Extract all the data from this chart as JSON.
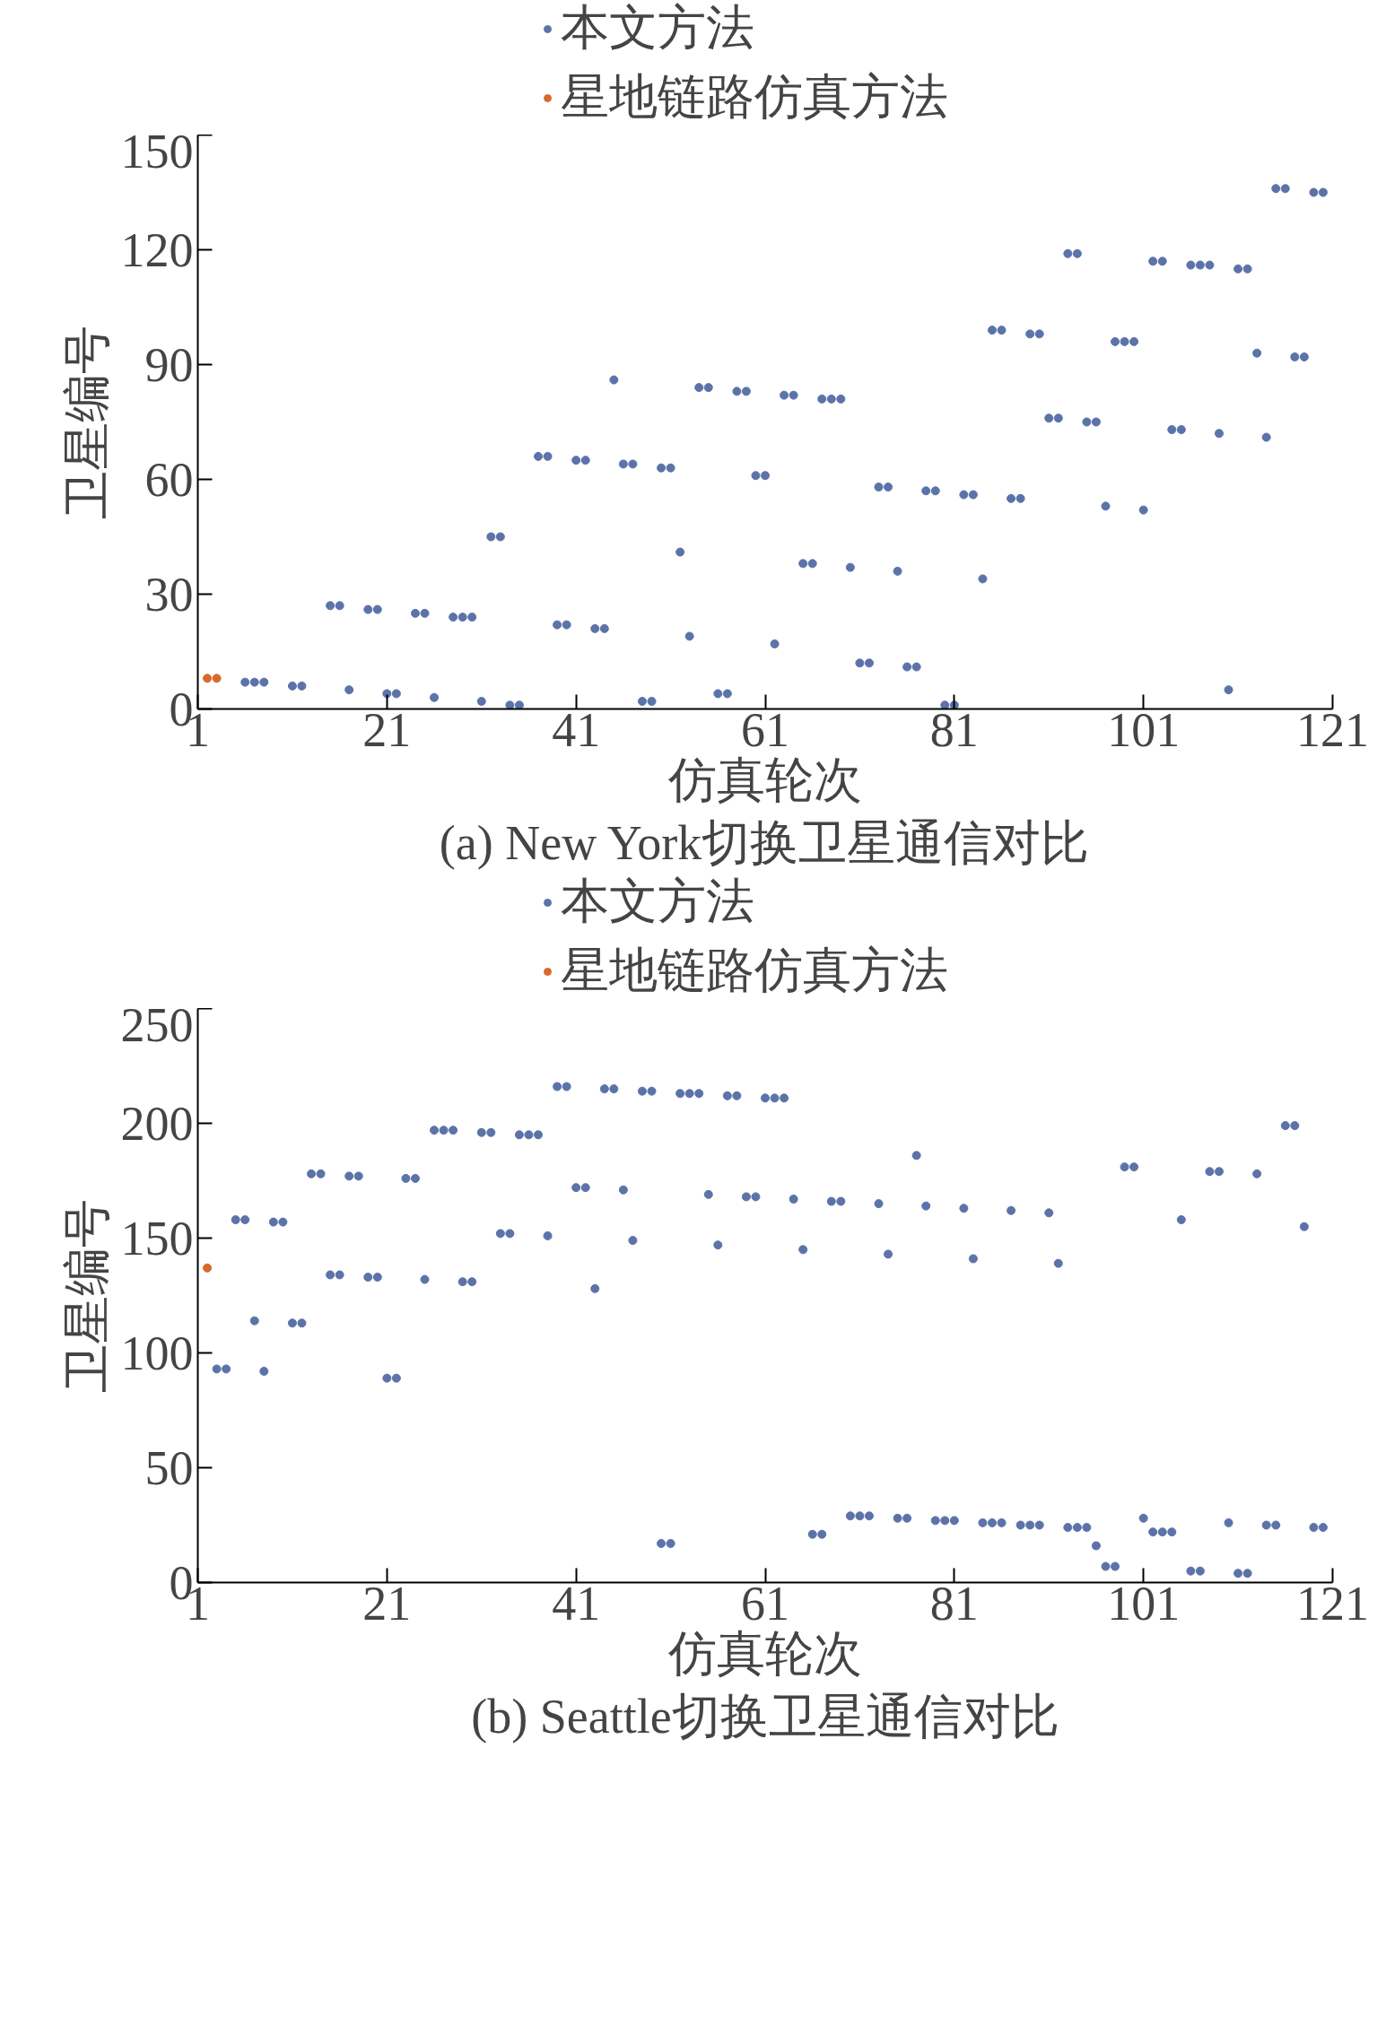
{
  "chart_data": [
    {
      "type": "scatter",
      "title": "(a) New York切换卫星通信对比",
      "xlabel": "仿真轮次",
      "ylabel": "卫星编号",
      "xlim": [
        1,
        121
      ],
      "xticks": [
        1,
        21,
        41,
        61,
        81,
        101,
        121
      ],
      "ylim": [
        0,
        150
      ],
      "yticks": [
        0,
        30,
        60,
        90,
        120,
        150
      ],
      "grid": false,
      "legend": "top",
      "marker": "circle",
      "series": [
        {
          "name": "本文方法",
          "color": "#5b73a8",
          "x": [
            6,
            7,
            8,
            11,
            12,
            15,
            16,
            17,
            19,
            20,
            21,
            22,
            24,
            25,
            26,
            28,
            29,
            30,
            31,
            32,
            33,
            34,
            35,
            37,
            38,
            39,
            40,
            41,
            42,
            43,
            44,
            45,
            46,
            47,
            48,
            49,
            50,
            51,
            52,
            53,
            54,
            55,
            56,
            57,
            58,
            59,
            60,
            61,
            62,
            63,
            64,
            65,
            66,
            67,
            68,
            69,
            70,
            71,
            72,
            73,
            74,
            75,
            76,
            77,
            78,
            79,
            80,
            81,
            82,
            83,
            84,
            85,
            86,
            87,
            88,
            89,
            90,
            91,
            92,
            93,
            94,
            95,
            96,
            97,
            98,
            99,
            100,
            101,
            102,
            103,
            104,
            105,
            106,
            107,
            108,
            109,
            110,
            111,
            112,
            113,
            114,
            115,
            116,
            117,
            118,
            119,
            120
          ],
          "values": [
            7,
            7,
            7,
            6,
            6,
            27,
            27,
            5,
            26,
            26,
            4,
            4,
            25,
            25,
            3,
            24,
            24,
            24,
            2,
            45,
            45,
            1,
            1,
            66,
            66,
            22,
            22,
            65,
            65,
            21,
            21,
            86,
            64,
            64,
            2,
            2,
            63,
            63,
            41,
            19,
            84,
            84,
            4,
            4,
            83,
            83,
            61,
            61,
            17,
            82,
            82,
            38,
            38,
            81,
            81,
            81,
            37,
            12,
            12,
            58,
            58,
            36,
            11,
            11,
            57,
            57,
            1,
            1,
            56,
            56,
            34,
            99,
            99,
            55,
            55,
            98,
            98,
            76,
            76,
            119,
            119,
            75,
            75,
            53,
            96,
            96,
            96,
            52,
            117,
            117,
            73,
            73,
            116,
            116,
            116,
            72,
            5,
            115,
            115,
            93,
            71,
            136,
            136,
            92,
            92,
            135,
            135
          ]
        },
        {
          "name": "星地链路仿真方法",
          "color": "#d9692a",
          "x": [
            2,
            3
          ],
          "values": [
            8,
            8
          ]
        }
      ]
    },
    {
      "type": "scatter",
      "title": "(b) Seattle切换卫星通信对比",
      "xlabel": "仿真轮次",
      "ylabel": "卫星编号",
      "xlim": [
        1,
        121
      ],
      "xticks": [
        1,
        21,
        41,
        61,
        81,
        101,
        121
      ],
      "ylim": [
        0,
        250
      ],
      "yticks": [
        0,
        50,
        100,
        150,
        200,
        250
      ],
      "grid": false,
      "legend": "top",
      "marker": "circle",
      "series": [
        {
          "name": "本文方法",
          "color": "#5b73a8",
          "x": [
            3,
            4,
            5,
            6,
            7,
            8,
            9,
            10,
            11,
            12,
            13,
            14,
            15,
            16,
            17,
            18,
            19,
            20,
            21,
            22,
            23,
            24,
            25,
            26,
            27,
            28,
            29,
            30,
            31,
            32,
            33,
            34,
            35,
            36,
            37,
            38,
            39,
            40,
            41,
            42,
            43,
            44,
            45,
            46,
            47,
            48,
            49,
            50,
            51,
            52,
            53,
            54,
            55,
            56,
            57,
            58,
            59,
            60,
            61,
            62,
            63,
            64,
            65,
            66,
            67,
            68,
            69,
            70,
            71,
            72,
            73,
            74,
            75,
            76,
            77,
            78,
            79,
            80,
            81,
            82,
            83,
            84,
            85,
            86,
            87,
            88,
            89,
            90,
            91,
            92,
            93,
            94,
            95,
            96,
            97,
            98,
            99,
            100,
            101,
            102,
            103,
            104,
            105,
            106,
            107,
            108,
            109,
            110,
            111,
            112,
            113,
            114,
            115,
            116,
            117,
            118,
            119,
            120
          ],
          "values": [
            93,
            93,
            158,
            158,
            114,
            92,
            157,
            157,
            113,
            113,
            178,
            178,
            134,
            134,
            177,
            177,
            133,
            133,
            89,
            89,
            176,
            176,
            132,
            197,
            197,
            197,
            131,
            131,
            196,
            196,
            152,
            152,
            195,
            195,
            195,
            151,
            216,
            216,
            172,
            172,
            128,
            215,
            215,
            171,
            149,
            214,
            214,
            17,
            17,
            213,
            213,
            213,
            169,
            147,
            212,
            212,
            168,
            168,
            211,
            211,
            211,
            167,
            145,
            21,
            21,
            166,
            166,
            29,
            29,
            29,
            165,
            143,
            28,
            28,
            186,
            164,
            27,
            27,
            27,
            163,
            141,
            26,
            26,
            26,
            162,
            25,
            25,
            25,
            161,
            139,
            24,
            24,
            24,
            16,
            7,
            7,
            181,
            181,
            28,
            22,
            22,
            22,
            158,
            5,
            5,
            179,
            179,
            26,
            4,
            4,
            178,
            25,
            25,
            199,
            199,
            155,
            24,
            24
          ]
        },
        {
          "name": "星地链路仿真方法",
          "color": "#d9692a",
          "x": [
            2
          ],
          "values": [
            137
          ]
        }
      ]
    }
  ]
}
